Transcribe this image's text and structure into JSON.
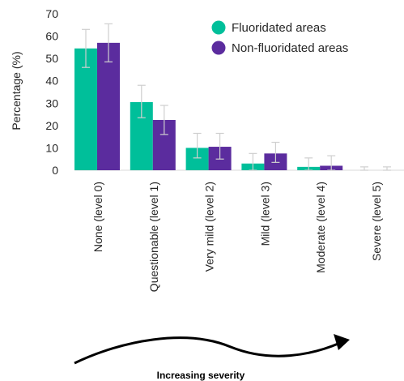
{
  "chart_data": {
    "type": "bar",
    "title": "",
    "xlabel": "",
    "ylabel": "Percentage (%)",
    "ylim": [
      0,
      70
    ],
    "yticks": [
      0,
      10,
      20,
      30,
      40,
      50,
      60,
      70
    ],
    "grid": false,
    "legend_position": "top-right",
    "categories": [
      "None (level 0)",
      "Questionable (level 1)",
      "Very mild (level 2)",
      "Mild (level 3)",
      "Moderate (level 4)",
      "Severe (level 5)"
    ],
    "series": [
      {
        "name": "Fluoridated areas",
        "color": "#00BF9A",
        "values": [
          54.5,
          30.5,
          10,
          3,
          1.5,
          0
        ],
        "error_low": [
          46,
          23.5,
          5.5,
          0,
          0,
          0
        ],
        "error_high": [
          63,
          38,
          16.5,
          7.5,
          5.5,
          1.5
        ]
      },
      {
        "name": "Non-fluoridated areas",
        "color": "#5B2C9E",
        "values": [
          57,
          22.5,
          10.5,
          7.5,
          2,
          0
        ],
        "error_low": [
          48.5,
          16,
          5,
          3.5,
          0,
          0
        ],
        "error_high": [
          65.5,
          29,
          16.5,
          12.5,
          6.5,
          1.5
        ]
      }
    ],
    "annotation": "Increasing severity"
  }
}
